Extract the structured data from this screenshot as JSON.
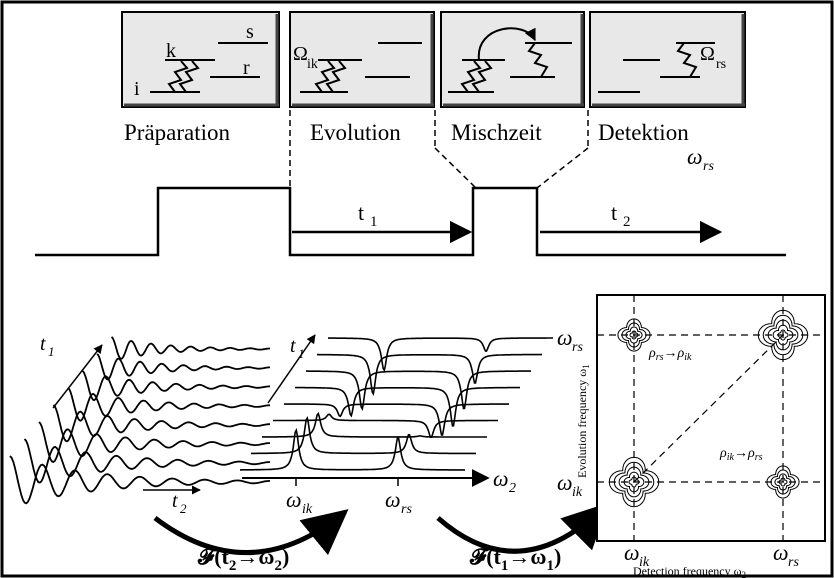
{
  "levels": {
    "i": "i",
    "k": "k",
    "r": "r",
    "s": "s",
    "omega_ik_label": "Ω",
    "omega_ik_sub": "ik",
    "omega_rs_label": "Ω",
    "omega_rs_sub": "rs"
  },
  "phases": [
    "Präparation",
    "Evolution",
    "Mischzeit",
    "Detektion"
  ],
  "omega_rs_top": "ω",
  "omega_rs_top_sub": "rs",
  "pulse": {
    "t1_label": "t",
    "t1_sub": "1",
    "t2_label": "t",
    "t2_sub": "2"
  },
  "fid": {
    "t1_axis": "t",
    "t1_sub": "1",
    "t2_axis": "t",
    "t2_sub": "2"
  },
  "spectra": {
    "t1_axis": "t",
    "t1_sub": "1",
    "omega_ik": "ω",
    "omega_ik_sub": "ik",
    "omega_rs": "ω",
    "omega_rs_sub": "rs",
    "omega2": "ω",
    "omega2_sub": "2"
  },
  "transforms": {
    "ft1_prefix": "𝓕(t",
    "ft1_a": "2",
    "ft1_arrow": "→ω",
    "ft1_b": "2",
    "ft1_close": ")",
    "ft2_prefix": "𝓕(t",
    "ft2_a": "1",
    "ft2_arrow": "→ω",
    "ft2_b": "1",
    "ft2_close": ")"
  },
  "map2d": {
    "y_tick_top": "ω",
    "y_tick_top_sub": "rs",
    "y_tick_bottom": "ω",
    "y_tick_bottom_sub": "ik",
    "x_tick_left": "ω",
    "x_tick_left_sub": "ik",
    "x_tick_right": "ω",
    "x_tick_right_sub": "rs",
    "y_label": "Evolution frequency ω",
    "y_label_sub": "1",
    "x_label": "Detection frequency ω",
    "x_label_sub": "2",
    "cross_peak_1": "ρrs→ρik",
    "cross_peak_1_a": "ρ",
    "cross_peak_1_a_sub": "rs",
    "cross_peak_1_arrow": "→ρ",
    "cross_peak_1_b_sub": "ik",
    "cross_peak_2_a": "ρ",
    "cross_peak_2_a_sub": "ik",
    "cross_peak_2_arrow": "→ρ",
    "cross_peak_2_b_sub": "rs"
  }
}
